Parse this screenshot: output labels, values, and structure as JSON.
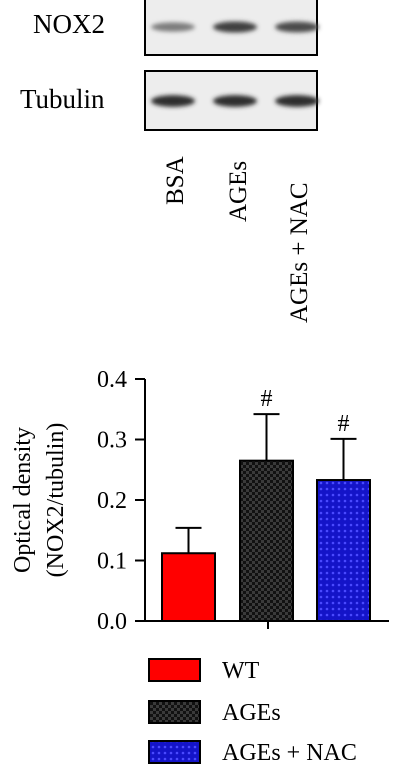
{
  "blot": {
    "rows": [
      {
        "label": "NOX2",
        "band_intensity": [
          0.55,
          0.85,
          0.8
        ]
      },
      {
        "label": "Tubulin",
        "band_intensity": [
          0.95,
          0.95,
          0.95
        ]
      }
    ],
    "lanes": [
      "BSA",
      "AGEs",
      "AGEs + NAC"
    ]
  },
  "chart_data": {
    "type": "bar",
    "title": "",
    "ylabel_line1": "Optical density",
    "ylabel_line2": "(NOX2/tubulin)",
    "xlabel": "",
    "ylim": [
      0,
      0.4
    ],
    "yticks": [
      0.0,
      0.1,
      0.2,
      0.3,
      0.4
    ],
    "ytick_labels": [
      "0.0",
      "0.1",
      "0.2",
      "0.3",
      "0.4"
    ],
    "categories": [
      "WT",
      "AGEs",
      "AGEs + NAC"
    ],
    "values": [
      0.112,
      0.265,
      0.233
    ],
    "errors": [
      0.042,
      0.077,
      0.068
    ],
    "annotations": [
      "",
      "#",
      "#"
    ],
    "colors": [
      "#ff0000",
      "#2a2a2a",
      "#1a1ad0"
    ],
    "fill_patterns": [
      "solid",
      "checker",
      "dots"
    ],
    "grid": false,
    "legend": {
      "position": "bottom",
      "entries": [
        "WT",
        "AGEs",
        "AGEs + NAC"
      ]
    }
  }
}
